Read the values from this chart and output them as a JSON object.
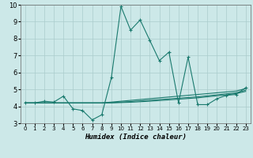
{
  "xlabel": "Humidex (Indice chaleur)",
  "xlim": [
    -0.5,
    23.5
  ],
  "ylim": [
    3.0,
    10.0
  ],
  "yticks": [
    3,
    4,
    5,
    6,
    7,
    8,
    9,
    10
  ],
  "xticks": [
    0,
    1,
    2,
    3,
    4,
    5,
    6,
    7,
    8,
    9,
    10,
    11,
    12,
    13,
    14,
    15,
    16,
    17,
    18,
    19,
    20,
    21,
    22,
    23
  ],
  "bg_color": "#cce8e8",
  "grid_color": "#aacccc",
  "line_color": "#1a7a6e",
  "main_x": [
    0,
    1,
    2,
    3,
    4,
    5,
    6,
    7,
    8,
    9,
    10,
    11,
    12,
    13,
    14,
    15,
    16,
    17,
    18,
    19,
    20,
    21,
    22,
    23
  ],
  "main_y": [
    4.2,
    4.2,
    4.3,
    4.25,
    4.6,
    3.85,
    3.75,
    3.2,
    3.5,
    5.7,
    9.9,
    8.5,
    9.1,
    7.9,
    6.7,
    7.2,
    4.2,
    6.9,
    4.1,
    4.1,
    4.45,
    4.65,
    4.7,
    5.1
  ],
  "flat1_y": [
    4.2,
    4.2,
    4.2,
    4.2,
    4.2,
    4.2,
    4.2,
    4.2,
    4.2,
    4.25,
    4.3,
    4.35,
    4.4,
    4.45,
    4.5,
    4.55,
    4.6,
    4.65,
    4.7,
    4.75,
    4.8,
    4.85,
    4.9,
    5.05
  ],
  "flat2_y": [
    4.2,
    4.2,
    4.2,
    4.2,
    4.2,
    4.2,
    4.2,
    4.2,
    4.2,
    4.22,
    4.25,
    4.28,
    4.32,
    4.36,
    4.4,
    4.44,
    4.48,
    4.52,
    4.56,
    4.62,
    4.68,
    4.74,
    4.8,
    4.95
  ],
  "flat3_y": [
    4.2,
    4.2,
    4.2,
    4.2,
    4.2,
    4.2,
    4.2,
    4.2,
    4.2,
    4.2,
    4.22,
    4.24,
    4.27,
    4.3,
    4.34,
    4.38,
    4.42,
    4.46,
    4.5,
    4.56,
    4.62,
    4.68,
    4.75,
    4.88
  ]
}
